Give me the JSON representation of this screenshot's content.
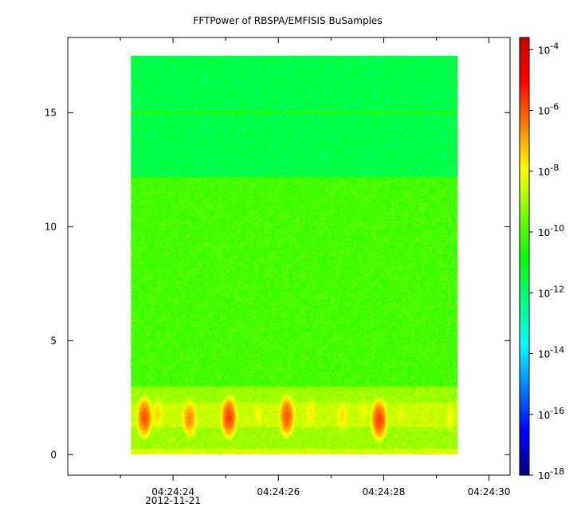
{
  "chart_data": {
    "type": "heatmap",
    "title": "FFTPower of RBSPA/EMFISIS  BuSamples",
    "xlabel": "",
    "ylabel": "",
    "x_ticks": [
      {
        "label": "04:24:24",
        "sublabel": "2012-11-21",
        "seconds": 24
      },
      {
        "label": "04:24:26",
        "sublabel": "",
        "seconds": 26
      },
      {
        "label": "04:24:28",
        "sublabel": "",
        "seconds": 28
      },
      {
        "label": "04:24:30",
        "sublabel": "",
        "seconds": 30
      }
    ],
    "x_minor_ticks_seconds": [
      23,
      25,
      27,
      29
    ],
    "xlim_seconds": [
      22.0,
      30.4
    ],
    "data_x_range_seconds": [
      23.2,
      29.4
    ],
    "y_ticks": [
      0,
      5,
      10,
      15
    ],
    "ylim": [
      -0.9,
      18.3
    ],
    "data_y_range": [
      0,
      17.5
    ],
    "colorbar": {
      "scale": "log",
      "range_exp": [
        -18,
        -3.6
      ],
      "tick_exponents": [
        -4,
        -6,
        -8,
        -10,
        -12,
        -14,
        -16,
        -18
      ],
      "tick_base": "10",
      "colormap": [
        "#00007f",
        "#0000ff",
        "#007fff",
        "#00ffff",
        "#00ff7f",
        "#00ff00",
        "#7fff00",
        "#ffff00",
        "#ff7f00",
        "#ff0000",
        "#cc0000"
      ]
    },
    "regions": [
      {
        "y_range": [
          12.2,
          17.5
        ],
        "level_exp": -11.6,
        "description": "upper band"
      },
      {
        "y_range": [
          3.0,
          12.2
        ],
        "level_exp": -10.0,
        "description": "main band"
      },
      {
        "y_range": [
          0.0,
          3.0
        ],
        "level_exp": -9.0,
        "description": "low band"
      }
    ],
    "line_feature": {
      "y": 15.05,
      "level_exp": -10.2
    },
    "bursts": [
      {
        "x": 23.45,
        "y": 1.65,
        "level_exp": -6.0
      },
      {
        "x": 23.7,
        "y": 1.8,
        "level_exp": -7.5
      },
      {
        "x": 24.3,
        "y": 1.6,
        "level_exp": -6.6
      },
      {
        "x": 25.05,
        "y": 1.65,
        "level_exp": -5.8
      },
      {
        "x": 25.6,
        "y": 1.8,
        "level_exp": -8.0
      },
      {
        "x": 26.15,
        "y": 1.7,
        "level_exp": -6.0
      },
      {
        "x": 26.6,
        "y": 1.85,
        "level_exp": -7.8
      },
      {
        "x": 27.2,
        "y": 1.7,
        "level_exp": -7.6
      },
      {
        "x": 27.6,
        "y": 1.9,
        "level_exp": -8.0
      },
      {
        "x": 27.9,
        "y": 1.55,
        "level_exp": -5.8
      },
      {
        "x": 28.3,
        "y": 1.8,
        "level_exp": -8.2
      },
      {
        "x": 29.25,
        "y": 1.6,
        "level_exp": -8.0
      }
    ]
  }
}
